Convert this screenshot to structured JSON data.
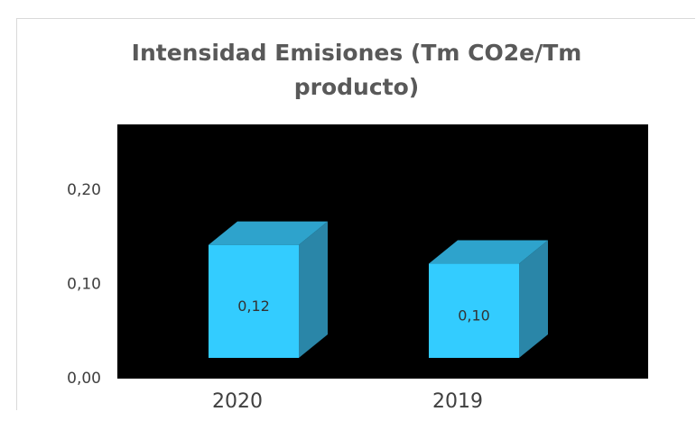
{
  "chart_data": {
    "type": "bar3d",
    "title": "Intensidad Emisiones (Tm CO2e/Tm producto)",
    "categories": [
      "2020",
      "2019"
    ],
    "values": [
      0.12,
      0.1
    ],
    "value_labels": [
      "0,12",
      "0,10"
    ],
    "color": "#33ccff",
    "ylim": [
      0,
      0.27
    ],
    "yticks": [
      {
        "value": 0,
        "label": "0,00"
      },
      {
        "value": 0.1,
        "label": "0,10"
      },
      {
        "value": 0.2,
        "label": "0,20"
      }
    ]
  }
}
